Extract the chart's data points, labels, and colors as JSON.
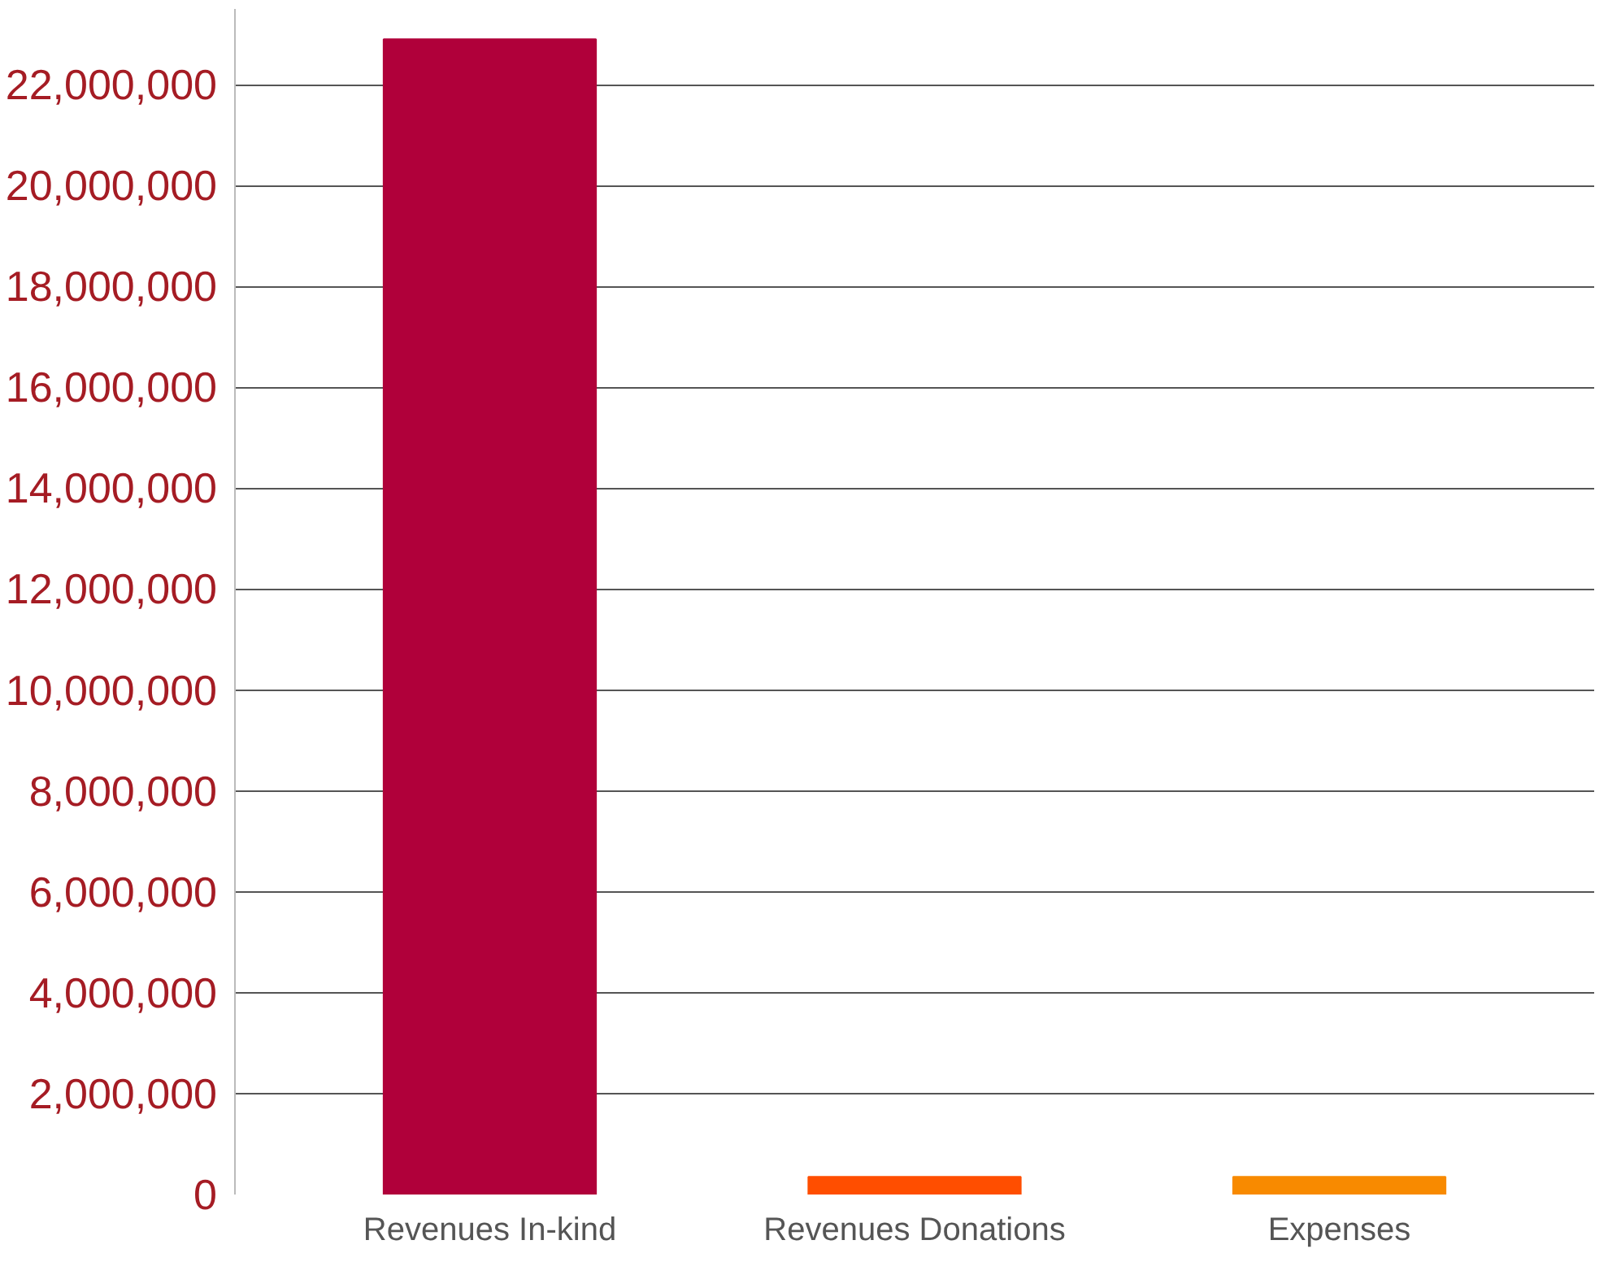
{
  "chart_data": {
    "type": "bar",
    "categories": [
      "Revenues In-kind",
      "Revenues Donations",
      "Expenses"
    ],
    "values": [
      22900000,
      350000,
      350000
    ],
    "colors": [
      "#b0003a",
      "#ff4e00",
      "#f88a00"
    ],
    "ylim": [
      0,
      23500000
    ],
    "yticks": [
      {
        "value": 0,
        "label": "0"
      },
      {
        "value": 2000000,
        "label": "2,000,000"
      },
      {
        "value": 4000000,
        "label": "4,000,000"
      },
      {
        "value": 6000000,
        "label": "6,000,000"
      },
      {
        "value": 8000000,
        "label": "8,000,000"
      },
      {
        "value": 10000000,
        "label": "10,000,000"
      },
      {
        "value": 12000000,
        "label": "12,000,000"
      },
      {
        "value": 14000000,
        "label": "14,000,000"
      },
      {
        "value": 16000000,
        "label": "16,000,000"
      },
      {
        "value": 18000000,
        "label": "18,000,000"
      },
      {
        "value": 20000000,
        "label": "20,000,000"
      },
      {
        "value": 22000000,
        "label": "22,000,000"
      }
    ],
    "grid": "y"
  }
}
